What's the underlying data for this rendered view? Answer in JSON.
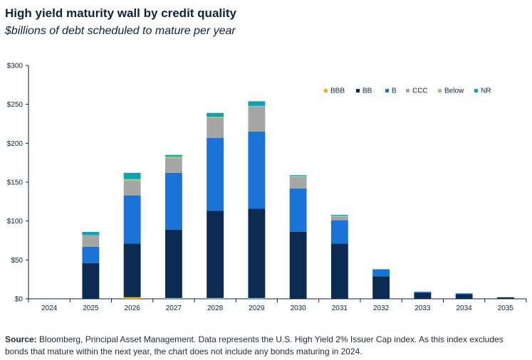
{
  "title": "High yield maturity wall by credit quality",
  "subtitle": "$billions of debt scheduled to mature per year",
  "source_label": "Source:",
  "source_text": " Bloomberg, Principal Asset Management. Data represents the U.S. High Yield 2% Issuer Cap index. As this index excludes bonds that mature within the next year, the chart does not include any bonds maturing in 2024.",
  "chart_data": {
    "type": "bar",
    "stacked": true,
    "title": "High yield maturity wall by credit quality",
    "subtitle": "$billions of debt scheduled to mature per year",
    "categories": [
      "2024",
      "2025",
      "2026",
      "2027",
      "2028",
      "2029",
      "2030",
      "2031",
      "2032",
      "2033",
      "2034",
      "2035"
    ],
    "ylim": [
      0,
      300
    ],
    "yticks": [
      0,
      50,
      100,
      150,
      200,
      250,
      300
    ],
    "ytick_labels": [
      "$0",
      "$50",
      "$100",
      "$150",
      "$200",
      "$250",
      "$300"
    ],
    "grid": false,
    "legend_position": "top-right",
    "series": [
      {
        "name": "BBB",
        "color": "#f2b600",
        "values": [
          0,
          0,
          2,
          1,
          1,
          1,
          0,
          0,
          0,
          0,
          0,
          0
        ]
      },
      {
        "name": "BB",
        "color": "#0b2b52",
        "values": [
          0,
          46,
          69,
          88,
          112,
          115,
          86,
          71,
          29,
          8,
          6,
          2
        ]
      },
      {
        "name": "B",
        "color": "#1a73d6",
        "values": [
          0,
          21,
          62,
          73,
          94,
          99,
          56,
          30,
          9,
          1,
          1,
          0
        ]
      },
      {
        "name": "CCC",
        "color": "#a6a6a6",
        "values": [
          0,
          15,
          19,
          19,
          26,
          32,
          15,
          5,
          0,
          0,
          0,
          0
        ]
      },
      {
        "name": "Below",
        "color": "#8fcf7a",
        "values": [
          0,
          0,
          2,
          2,
          1,
          1,
          1,
          1,
          0,
          0,
          0,
          0
        ]
      },
      {
        "name": "NR",
        "color": "#13a0b4",
        "values": [
          0,
          4,
          8,
          2,
          5,
          6,
          1,
          1,
          0,
          0,
          0,
          0
        ]
      }
    ]
  }
}
